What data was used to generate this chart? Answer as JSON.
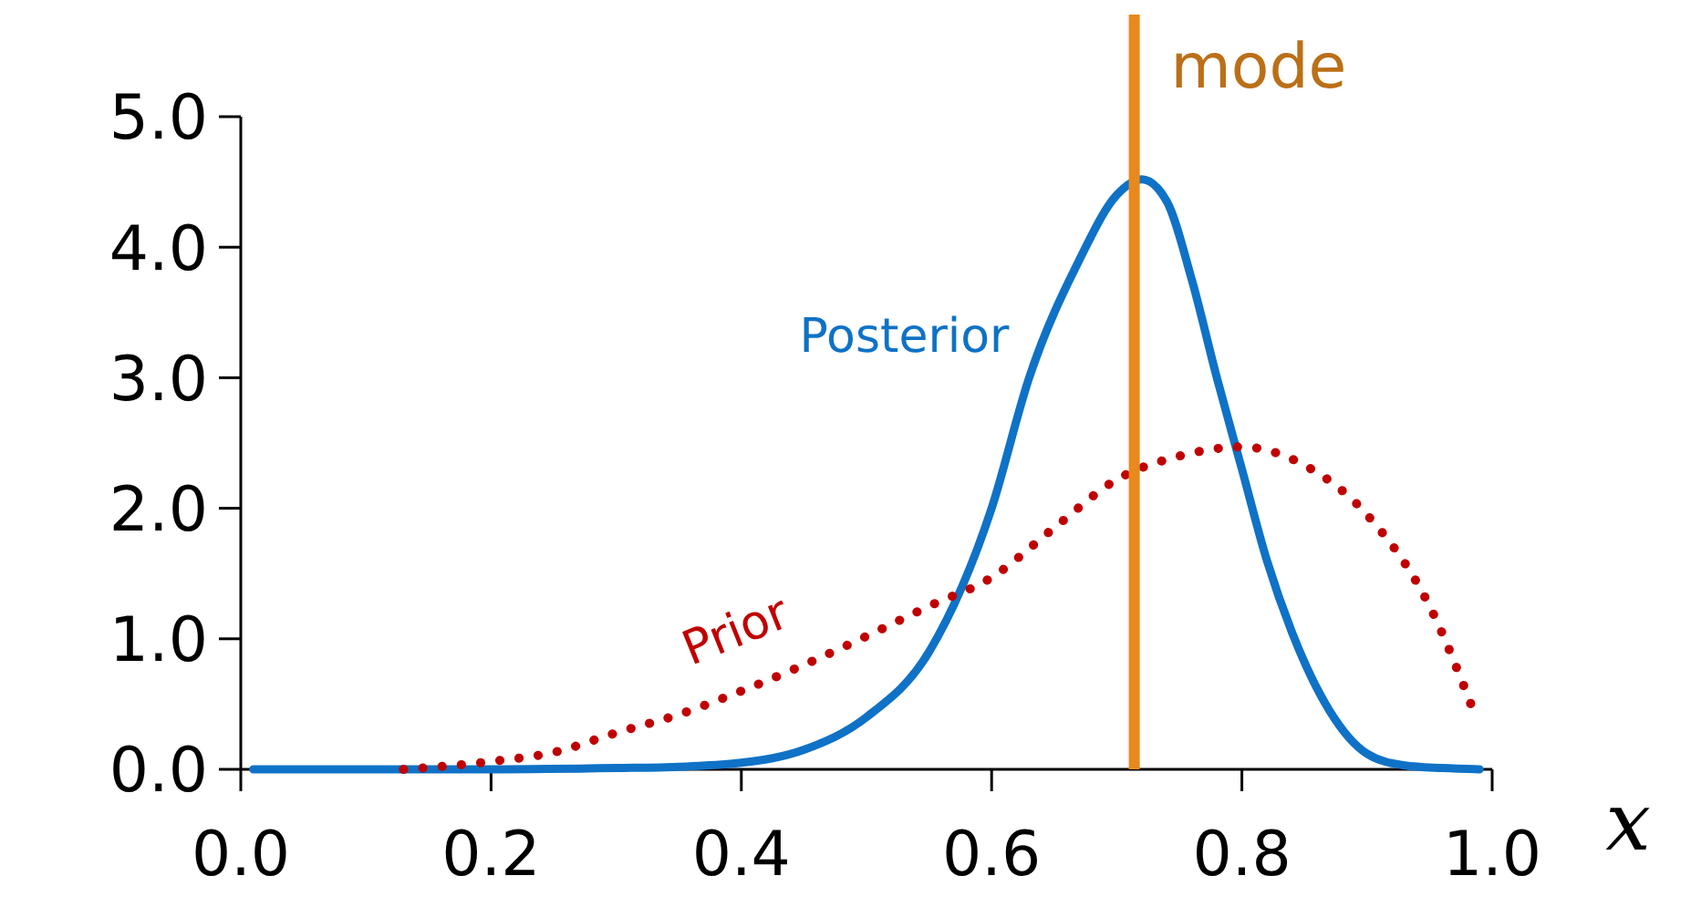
{
  "chart_data": {
    "type": "line",
    "xlabel": "x",
    "xlim": [
      0,
      1
    ],
    "xticks": [
      {
        "value": 0,
        "label": "0.0"
      },
      {
        "value": 0.2,
        "label": "0.2"
      },
      {
        "value": 0.4,
        "label": "0.4"
      },
      {
        "value": 0.6,
        "label": "0.6"
      },
      {
        "value": 0.8,
        "label": "0.8"
      },
      {
        "value": 1,
        "label": "1.0"
      }
    ],
    "ylim": [
      0,
      5
    ],
    "yticks": [
      {
        "value": 0,
        "label": "0.0"
      },
      {
        "value": 1,
        "label": "1.0"
      },
      {
        "value": 2,
        "label": "2.0"
      },
      {
        "value": 3,
        "label": "3.0"
      },
      {
        "value": 4,
        "label": "4.0"
      },
      {
        "value": 5,
        "label": "5.0"
      }
    ],
    "grid": false,
    "legend": false,
    "marker": "none",
    "series": [
      {
        "name": "Posterior",
        "color": "#0f72c6",
        "line_style": "solid",
        "x": [
          0.01,
          0.1,
          0.2,
          0.3,
          0.35,
          0.4,
          0.45,
          0.5,
          0.55,
          0.6,
          0.63,
          0.67,
          0.7,
          0.72,
          0.74,
          0.76,
          0.78,
          0.8,
          0.82,
          0.84,
          0.87,
          0.9,
          0.93,
          0.96,
          0.99
        ],
        "values": [
          0,
          0,
          0,
          0.01,
          0.02,
          0.05,
          0.15,
          0.4,
          0.9,
          2.0,
          3.0,
          3.9,
          4.4,
          4.52,
          4.35,
          3.75,
          3.0,
          2.3,
          1.6,
          1.05,
          0.45,
          0.12,
          0.03,
          0.01,
          0
        ]
      },
      {
        "name": "Prior",
        "color": "#c00000",
        "line_style": "dotted",
        "x": [
          0.13,
          0.2,
          0.25,
          0.3,
          0.35,
          0.4,
          0.45,
          0.5,
          0.55,
          0.6,
          0.65,
          0.7,
          0.75,
          0.8,
          0.85,
          0.9,
          0.95,
          0.985
        ],
        "values": [
          0,
          0.06,
          0.13,
          0.28,
          0.42,
          0.6,
          0.8,
          1.02,
          1.25,
          1.47,
          1.85,
          2.22,
          2.4,
          2.47,
          2.33,
          1.95,
          1.25,
          0.45
        ]
      }
    ],
    "ref_lines": [
      {
        "axis": "x",
        "value": 0.714,
        "label": "mode",
        "color": "#e8891c"
      }
    ]
  }
}
